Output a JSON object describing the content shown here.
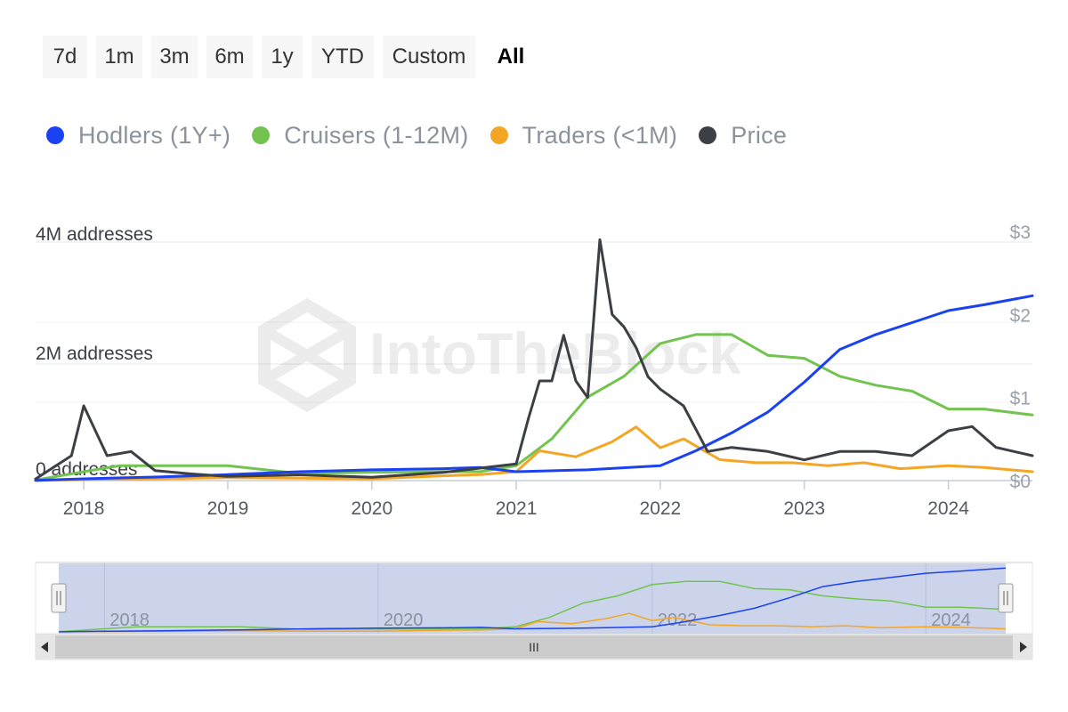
{
  "range_selector": {
    "buttons": [
      "7d",
      "1m",
      "3m",
      "6m",
      "1y",
      "YTD",
      "Custom",
      "All"
    ],
    "active": "All"
  },
  "legend": [
    {
      "label": "Hodlers (1Y+)",
      "color": "#1a41f2"
    },
    {
      "label": "Cruisers (1-12M)",
      "color": "#72c34f"
    },
    {
      "label": "Traders (<1M)",
      "color": "#f5a524"
    },
    {
      "label": "Price",
      "color": "#3c3f44"
    }
  ],
  "watermark": "IntoTheBlock",
  "navigator": {
    "year_labels": [
      "2018",
      "2020",
      "2022",
      "2024"
    ],
    "scrollbar_grip": "III"
  },
  "chart_data": {
    "type": "line",
    "x_type": "date",
    "x_range": [
      "2017-09-01",
      "2024-08-01"
    ],
    "x_ticks": [
      "2018",
      "2019",
      "2020",
      "2021",
      "2022",
      "2023",
      "2024"
    ],
    "y_left": {
      "ticks": [
        "0 addresses",
        "2M addresses",
        "4M addresses"
      ],
      "range": [
        0,
        4000000
      ]
    },
    "y_right": {
      "ticks": [
        "$0",
        "$1",
        "$2",
        "$3"
      ],
      "range": [
        0,
        3
      ]
    },
    "grid": true,
    "legend_position": "top-left",
    "series": [
      {
        "name": "Hodlers (1Y+)",
        "axis": "left",
        "color": "#1a41f2",
        "x": [
          "2017-09-01",
          "2018-01-01",
          "2018-07-01",
          "2019-01-01",
          "2019-07-01",
          "2020-01-01",
          "2020-07-01",
          "2020-10-01",
          "2021-01-01",
          "2021-07-01",
          "2022-01-01",
          "2022-04-01",
          "2022-07-01",
          "2022-10-01",
          "2023-01-01",
          "2023-04-01",
          "2023-07-01",
          "2023-10-01",
          "2024-01-01",
          "2024-04-01",
          "2024-08-01"
        ],
        "values": [
          5000,
          30000,
          60000,
          100000,
          150000,
          180000,
          200000,
          220000,
          150000,
          180000,
          250000,
          500000,
          800000,
          1150000,
          1650000,
          2200000,
          2450000,
          2650000,
          2850000,
          2950000,
          3100000
        ]
      },
      {
        "name": "Cruisers (1-12M)",
        "axis": "left",
        "color": "#72c34f",
        "x": [
          "2017-09-01",
          "2018-01-01",
          "2018-04-01",
          "2018-07-01",
          "2019-01-01",
          "2019-07-01",
          "2020-01-01",
          "2020-07-01",
          "2020-10-01",
          "2021-01-01",
          "2021-04-01",
          "2021-07-01",
          "2021-10-01",
          "2022-01-01",
          "2022-04-01",
          "2022-07-01",
          "2022-10-01",
          "2023-01-01",
          "2023-04-01",
          "2023-07-01",
          "2023-10-01",
          "2024-01-01",
          "2024-04-01",
          "2024-08-01"
        ],
        "values": [
          10000,
          150000,
          250000,
          250000,
          250000,
          120000,
          140000,
          150000,
          150000,
          250000,
          700000,
          1400000,
          1750000,
          2300000,
          2450000,
          2450000,
          2100000,
          2050000,
          1750000,
          1600000,
          1500000,
          1200000,
          1200000,
          1100000
        ]
      },
      {
        "name": "Traders (<1M)",
        "axis": "left",
        "color": "#f5a524",
        "x": [
          "2017-09-01",
          "2018-01-01",
          "2018-07-01",
          "2019-01-01",
          "2019-07-01",
          "2020-01-01",
          "2020-07-01",
          "2020-10-01",
          "2021-01-01",
          "2021-03-01",
          "2021-06-01",
          "2021-09-01",
          "2021-11-01",
          "2022-01-01",
          "2022-03-01",
          "2022-06-01",
          "2022-09-01",
          "2022-12-01",
          "2023-03-01",
          "2023-06-01",
          "2023-09-01",
          "2024-01-01",
          "2024-04-01",
          "2024-08-01"
        ],
        "values": [
          5000,
          20000,
          30000,
          50000,
          40000,
          30000,
          80000,
          100000,
          150000,
          500000,
          400000,
          650000,
          900000,
          550000,
          700000,
          350000,
          300000,
          300000,
          250000,
          300000,
          200000,
          250000,
          220000,
          150000
        ]
      },
      {
        "name": "Price",
        "axis": "right",
        "color": "#3c3f44",
        "x": [
          "2017-09-01",
          "2017-12-01",
          "2018-01-01",
          "2018-03-01",
          "2018-05-01",
          "2018-07-01",
          "2018-10-01",
          "2019-01-01",
          "2019-07-01",
          "2020-01-01",
          "2020-07-01",
          "2020-10-01",
          "2021-01-01",
          "2021-02-01",
          "2021-03-01",
          "2021-04-01",
          "2021-05-01",
          "2021-06-01",
          "2021-07-01",
          "2021-08-01",
          "2021-09-01",
          "2021-10-01",
          "2021-11-01",
          "2021-12-01",
          "2022-01-01",
          "2022-03-01",
          "2022-05-01",
          "2022-07-01",
          "2022-10-01",
          "2023-01-01",
          "2023-04-01",
          "2023-07-01",
          "2023-10-01",
          "2024-01-01",
          "2024-03-01",
          "2024-05-01",
          "2024-08-01"
        ],
        "values": [
          0.02,
          0.3,
          0.9,
          0.3,
          0.35,
          0.12,
          0.08,
          0.05,
          0.07,
          0.04,
          0.1,
          0.15,
          0.2,
          0.75,
          1.2,
          1.2,
          1.75,
          1.2,
          1.0,
          2.9,
          2.0,
          1.85,
          1.6,
          1.25,
          1.1,
          0.9,
          0.35,
          0.4,
          0.35,
          0.25,
          0.35,
          0.35,
          0.3,
          0.6,
          0.65,
          0.4,
          0.3
        ]
      }
    ]
  }
}
